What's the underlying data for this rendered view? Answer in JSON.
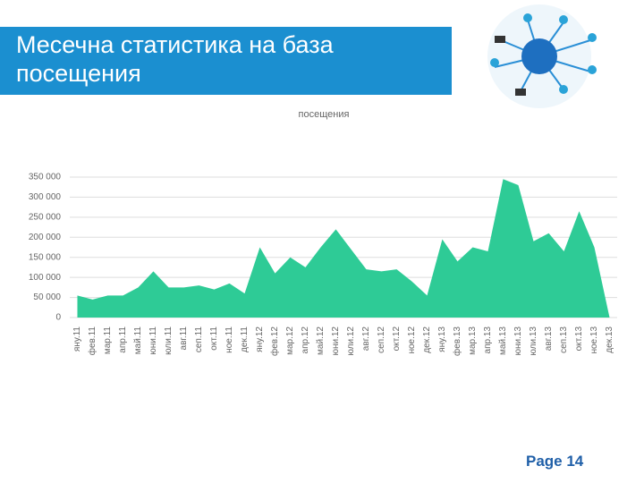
{
  "slide": {
    "title": "Месечна статистика на база посещения",
    "page": "Page 14"
  },
  "chart_data": {
    "type": "area",
    "title": "посещения",
    "color": "#2ecb96",
    "grid": true,
    "categories": [
      "яну.11",
      "фев.11",
      "мар.11",
      "апр.11",
      "май.11",
      "юни.11",
      "юли.11",
      "авг.11",
      "сеп.11",
      "окт.11",
      "ное.11",
      "дек.11",
      "яну.12",
      "фев.12",
      "мар.12",
      "апр.12",
      "май.12",
      "юни.12",
      "юли.12",
      "авг.12",
      "сеп.12",
      "окт.12",
      "ное.12",
      "дек.12",
      "яну.13",
      "фев.13",
      "мар.13",
      "апр.13",
      "май.13",
      "юни.13",
      "юли.13",
      "авг.13",
      "сеп.13",
      "окт.13",
      "ное.13",
      "дек.13"
    ],
    "values": [
      55000,
      45000,
      55000,
      55000,
      75000,
      115000,
      75000,
      75000,
      80000,
      70000,
      85000,
      60000,
      175000,
      110000,
      150000,
      125000,
      175000,
      220000,
      170000,
      120000,
      115000,
      120000,
      90000,
      55000,
      195000,
      140000,
      175000,
      165000,
      345000,
      330000,
      190000,
      210000,
      165000,
      265000,
      175000,
      0
    ],
    "ylim": [
      0,
      350000
    ],
    "yticks": [
      0,
      {
        "value": 50000,
        "label": "50 000"
      },
      {
        "value": 100000,
        "label": "100 000"
      },
      {
        "value": 150000,
        "label": "150 000"
      },
      {
        "value": 200000,
        "label": "200 000"
      },
      {
        "value": 250000,
        "label": "250 000"
      },
      {
        "value": 300000,
        "label": "300 000"
      },
      {
        "value": 350000,
        "label": "350 000"
      }
    ]
  }
}
